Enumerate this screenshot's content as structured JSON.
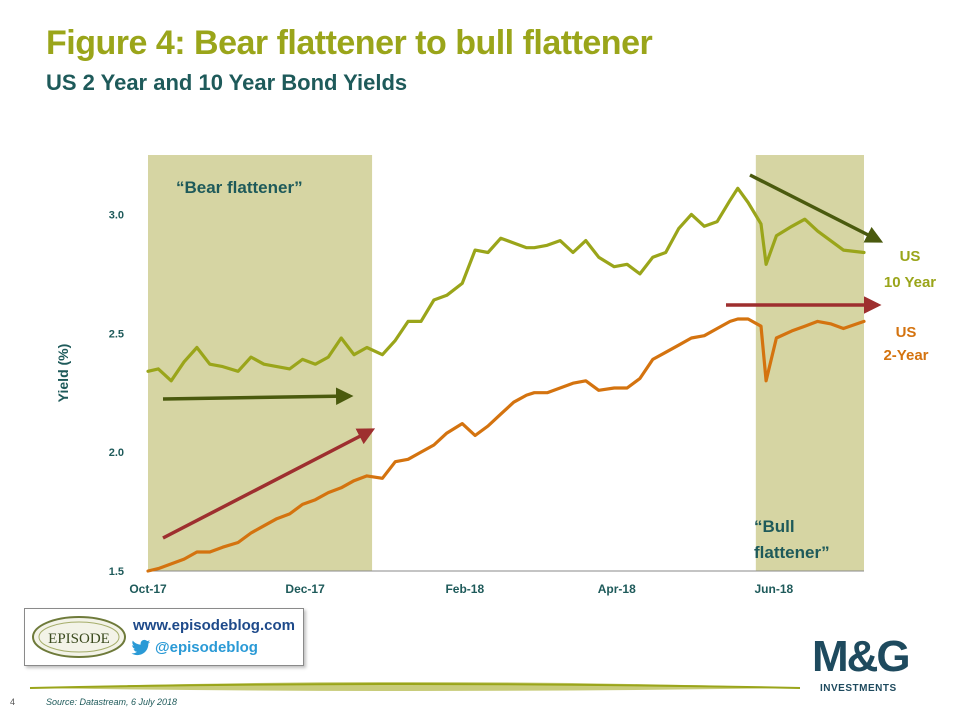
{
  "header": {
    "title": "Figure 4: Bear flattener to bull flattener",
    "subtitle": "US 2 Year and 10 Year Bond Yields"
  },
  "chart_data": {
    "type": "line",
    "ylabel": "Yield (%)",
    "xlabel": "",
    "ylim": [
      1.5,
      3.25
    ],
    "yticks": [
      "1.5",
      "2.0",
      "2.5",
      "3.0"
    ],
    "ytick_values": [
      1.5,
      2.0,
      2.5,
      3.0
    ],
    "xticks": [
      "Oct-17",
      "Dec-17",
      "Feb-18",
      "Apr-18",
      "Jun-18"
    ],
    "xtick_dates": [
      "2017-10-01",
      "2017-12-01",
      "2018-02-01",
      "2018-04-01",
      "2018-06-01"
    ],
    "xlim": [
      "2017-10-01",
      "2018-07-06"
    ],
    "series": [
      {
        "name": "US 10 Year",
        "color": "#9aa51a",
        "x": [
          "2017-10-01",
          "2017-10-05",
          "2017-10-10",
          "2017-10-15",
          "2017-10-20",
          "2017-10-25",
          "2017-10-30",
          "2017-11-05",
          "2017-11-10",
          "2017-11-15",
          "2017-11-20",
          "2017-11-25",
          "2017-11-30",
          "2017-12-05",
          "2017-12-10",
          "2017-12-15",
          "2017-12-20",
          "2017-12-25",
          "2017-12-31",
          "2018-01-05",
          "2018-01-10",
          "2018-01-15",
          "2018-01-20",
          "2018-01-25",
          "2018-01-31",
          "2018-02-05",
          "2018-02-10",
          "2018-02-15",
          "2018-02-20",
          "2018-02-25",
          "2018-02-28",
          "2018-03-05",
          "2018-03-10",
          "2018-03-15",
          "2018-03-20",
          "2018-03-25",
          "2018-03-31",
          "2018-04-05",
          "2018-04-10",
          "2018-04-15",
          "2018-04-20",
          "2018-04-25",
          "2018-04-30",
          "2018-05-05",
          "2018-05-10",
          "2018-05-15",
          "2018-05-18",
          "2018-05-22",
          "2018-05-27",
          "2018-05-29",
          "2018-06-02",
          "2018-06-08",
          "2018-06-13",
          "2018-06-18",
          "2018-06-23",
          "2018-06-28",
          "2018-07-06"
        ],
        "y": [
          2.34,
          2.35,
          2.3,
          2.38,
          2.44,
          2.37,
          2.36,
          2.34,
          2.4,
          2.37,
          2.36,
          2.35,
          2.39,
          2.37,
          2.4,
          2.48,
          2.41,
          2.44,
          2.41,
          2.47,
          2.55,
          2.55,
          2.64,
          2.66,
          2.71,
          2.85,
          2.84,
          2.9,
          2.88,
          2.86,
          2.86,
          2.87,
          2.89,
          2.84,
          2.89,
          2.82,
          2.78,
          2.79,
          2.75,
          2.82,
          2.84,
          2.94,
          3.0,
          2.95,
          2.97,
          3.06,
          3.11,
          3.05,
          2.96,
          2.79,
          2.91,
          2.95,
          2.98,
          2.93,
          2.89,
          2.85,
          2.84
        ]
      },
      {
        "name": "US 2-Year",
        "color": "#d4730f",
        "x": [
          "2017-10-01",
          "2017-10-05",
          "2017-10-10",
          "2017-10-15",
          "2017-10-20",
          "2017-10-25",
          "2017-10-30",
          "2017-11-05",
          "2017-11-10",
          "2017-11-15",
          "2017-11-20",
          "2017-11-25",
          "2017-11-30",
          "2017-12-05",
          "2017-12-10",
          "2017-12-15",
          "2017-12-20",
          "2017-12-25",
          "2017-12-31",
          "2018-01-05",
          "2018-01-10",
          "2018-01-15",
          "2018-01-20",
          "2018-01-25",
          "2018-01-31",
          "2018-02-05",
          "2018-02-10",
          "2018-02-15",
          "2018-02-20",
          "2018-02-25",
          "2018-02-28",
          "2018-03-05",
          "2018-03-10",
          "2018-03-15",
          "2018-03-20",
          "2018-03-25",
          "2018-03-31",
          "2018-04-05",
          "2018-04-10",
          "2018-04-15",
          "2018-04-20",
          "2018-04-25",
          "2018-04-30",
          "2018-05-05",
          "2018-05-10",
          "2018-05-15",
          "2018-05-18",
          "2018-05-22",
          "2018-05-27",
          "2018-05-29",
          "2018-06-02",
          "2018-06-08",
          "2018-06-13",
          "2018-06-18",
          "2018-06-23",
          "2018-06-28",
          "2018-07-06"
        ],
        "y": [
          1.5,
          1.51,
          1.53,
          1.55,
          1.58,
          1.58,
          1.6,
          1.62,
          1.66,
          1.69,
          1.72,
          1.74,
          1.78,
          1.8,
          1.83,
          1.85,
          1.88,
          1.9,
          1.89,
          1.96,
          1.97,
          2.0,
          2.03,
          2.08,
          2.12,
          2.07,
          2.11,
          2.16,
          2.21,
          2.24,
          2.25,
          2.25,
          2.27,
          2.29,
          2.3,
          2.26,
          2.27,
          2.27,
          2.31,
          2.39,
          2.42,
          2.45,
          2.48,
          2.49,
          2.52,
          2.55,
          2.56,
          2.56,
          2.53,
          2.3,
          2.48,
          2.51,
          2.53,
          2.55,
          2.54,
          2.52,
          2.55
        ]
      }
    ],
    "shaded_regions": [
      {
        "start": "2017-10-01",
        "end": "2017-12-27"
      },
      {
        "start": "2018-05-25",
        "end": "2018-07-06"
      }
    ],
    "annotations": {
      "bear_flattener": "“Bear flattener”",
      "bull_flattener_line1": "“Bull",
      "bull_flattener_line2": "flattener”",
      "label_10y_line1": "US",
      "label_10y_line2": "10 Year",
      "label_2y_line1": "US",
      "label_2y_line2": "2-Year"
    },
    "colors": {
      "shade": "#d6d5a3",
      "arrow_dark_green": "#4a5a0e",
      "arrow_red": "#9e2f2f",
      "axis_text": "#1e5a5a"
    },
    "grid": false,
    "legend": "none"
  },
  "footer": {
    "page_number": "4",
    "source": "Source: Datastream, 6 July 2018",
    "episode_logo_text": "EPISODE",
    "episode_url": "www.episodeblog.com",
    "episode_twitter": "@episodeblog",
    "mg_logo": "M&G",
    "mg_sub": "INVESTMENTS"
  }
}
